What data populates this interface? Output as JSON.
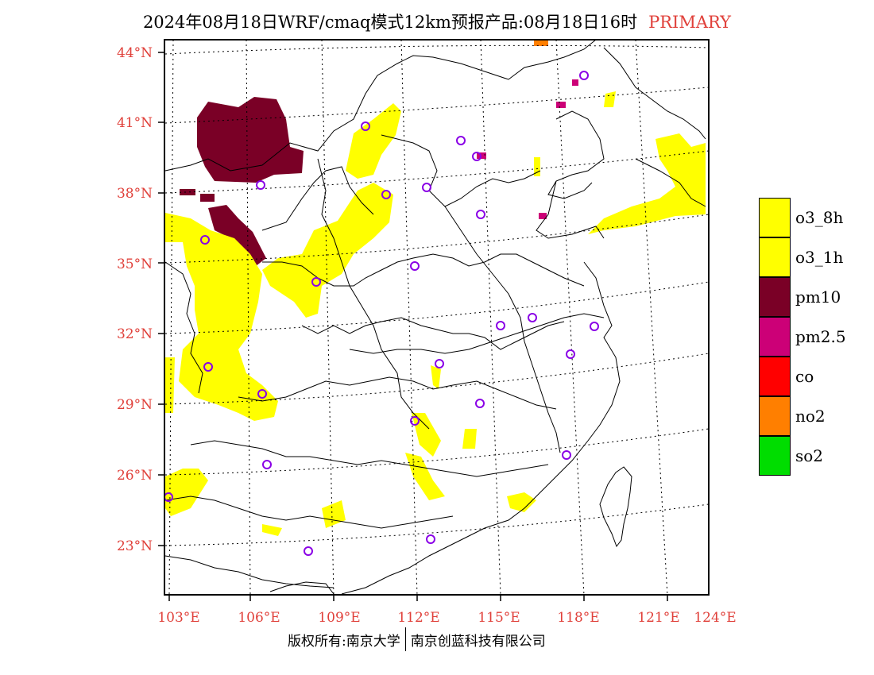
{
  "title": {
    "main": "2024年08月18日WRF/cmaq模式12km预报产品:08月18日16时",
    "tag": "PRIMARY"
  },
  "map": {
    "lat_labels": [
      "44°N",
      "41°N",
      "38°N",
      "35°N",
      "32°N",
      "29°N",
      "26°N",
      "23°N"
    ],
    "lon_labels": [
      "103°E",
      "106°E",
      "109°E",
      "112°E",
      "115°E",
      "118°E",
      "121°E",
      "124°E"
    ],
    "colors": {
      "o3": "#ffff00",
      "pm10": "#7a0026",
      "pm25": "#cc0077",
      "no2": "#ff7f00",
      "station": "#8a00e6",
      "tick_label": "#e0403a"
    }
  },
  "legend": [
    {
      "label": "o3_8h",
      "color": "#ffff00"
    },
    {
      "label": "o3_1h",
      "color": "#ffff00"
    },
    {
      "label": "pm10",
      "color": "#7a0026"
    },
    {
      "label": "pm2.5",
      "color": "#cc0077"
    },
    {
      "label": "co",
      "color": "#ff0000"
    },
    {
      "label": "no2",
      "color": "#ff7f00"
    },
    {
      "label": "so2",
      "color": "#00dd00"
    }
  ],
  "footer": {
    "left": "版权所有:南京大学",
    "right": "南京创蓝科技有限公司"
  }
}
